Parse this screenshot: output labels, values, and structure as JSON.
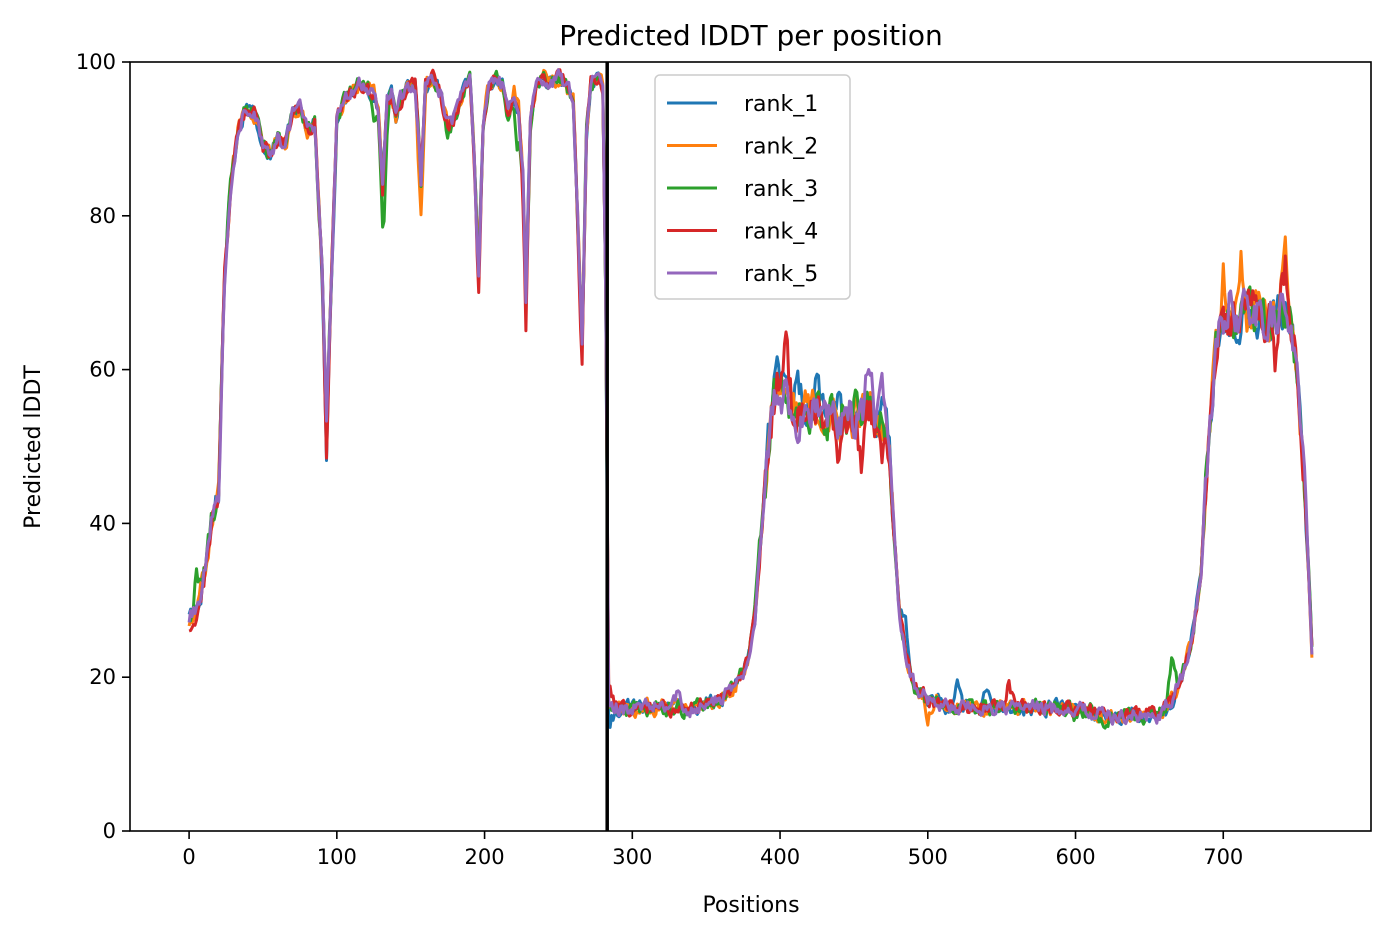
{
  "chart_data": {
    "type": "line",
    "title": "Predicted lDDT per position",
    "xlabel": "Positions",
    "ylabel": "Predicted lDDT",
    "xlim": [
      -40,
      800
    ],
    "ylim": [
      0,
      100
    ],
    "xticks": [
      0,
      100,
      200,
      300,
      400,
      500,
      600,
      700
    ],
    "yticks": [
      0,
      20,
      40,
      60,
      80,
      100
    ],
    "grid": false,
    "legend_position": "upper-center",
    "chain_break_x": 283,
    "x_start": 0,
    "x_end": 760,
    "base_profile": [
      [
        0,
        27
      ],
      [
        5,
        29
      ],
      [
        10,
        33
      ],
      [
        15,
        40
      ],
      [
        20,
        44
      ],
      [
        24,
        72
      ],
      [
        28,
        84
      ],
      [
        33,
        91
      ],
      [
        38,
        94
      ],
      [
        45,
        93
      ],
      [
        50,
        89
      ],
      [
        55,
        88
      ],
      [
        60,
        90
      ],
      [
        65,
        89
      ],
      [
        70,
        93
      ],
      [
        75,
        94
      ],
      [
        80,
        91
      ],
      [
        85,
        92
      ],
      [
        90,
        74
      ],
      [
        93,
        53
      ],
      [
        96,
        70
      ],
      [
        100,
        92
      ],
      [
        105,
        95
      ],
      [
        110,
        96
      ],
      [
        115,
        97
      ],
      [
        120,
        97
      ],
      [
        125,
        96
      ],
      [
        128,
        94
      ],
      [
        131,
        84
      ],
      [
        134,
        95
      ],
      [
        137,
        96
      ],
      [
        140,
        93
      ],
      [
        143,
        95
      ],
      [
        148,
        97
      ],
      [
        153,
        97
      ],
      [
        157,
        85
      ],
      [
        160,
        97
      ],
      [
        165,
        98
      ],
      [
        170,
        96
      ],
      [
        175,
        92
      ],
      [
        180,
        93
      ],
      [
        185,
        96
      ],
      [
        190,
        98
      ],
      [
        193,
        88
      ],
      [
        196,
        72
      ],
      [
        199,
        92
      ],
      [
        203,
        97
      ],
      [
        207,
        98
      ],
      [
        212,
        97
      ],
      [
        216,
        93
      ],
      [
        220,
        96
      ],
      [
        223,
        94
      ],
      [
        226,
        85
      ],
      [
        228,
        70
      ],
      [
        231,
        92
      ],
      [
        235,
        97
      ],
      [
        240,
        98
      ],
      [
        245,
        97
      ],
      [
        250,
        98
      ],
      [
        255,
        97
      ],
      [
        260,
        95
      ],
      [
        263,
        80
      ],
      [
        266,
        64
      ],
      [
        269,
        91
      ],
      [
        272,
        97
      ],
      [
        276,
        98
      ],
      [
        280,
        97
      ],
      [
        282,
        70
      ],
      [
        284,
        16
      ],
      [
        300,
        16
      ],
      [
        320,
        16
      ],
      [
        340,
        16
      ],
      [
        360,
        17
      ],
      [
        370,
        19
      ],
      [
        378,
        22
      ],
      [
        383,
        28
      ],
      [
        388,
        40
      ],
      [
        393,
        52
      ],
      [
        398,
        58
      ],
      [
        403,
        57
      ],
      [
        410,
        54
      ],
      [
        420,
        55
      ],
      [
        430,
        54
      ],
      [
        440,
        53
      ],
      [
        450,
        54
      ],
      [
        460,
        55
      ],
      [
        470,
        52
      ],
      [
        474,
        50
      ],
      [
        477,
        40
      ],
      [
        481,
        28
      ],
      [
        486,
        22
      ],
      [
        491,
        19
      ],
      [
        500,
        17
      ],
      [
        520,
        16
      ],
      [
        540,
        16
      ],
      [
        560,
        16
      ],
      [
        580,
        16
      ],
      [
        600,
        16
      ],
      [
        620,
        15
      ],
      [
        640,
        15
      ],
      [
        655,
        15
      ],
      [
        665,
        17
      ],
      [
        672,
        20
      ],
      [
        680,
        26
      ],
      [
        685,
        34
      ],
      [
        690,
        50
      ],
      [
        695,
        63
      ],
      [
        700,
        66
      ],
      [
        710,
        67
      ],
      [
        720,
        68
      ],
      [
        730,
        66
      ],
      [
        740,
        68
      ],
      [
        745,
        67
      ],
      [
        750,
        60
      ],
      [
        755,
        45
      ],
      [
        760,
        24
      ]
    ],
    "series": [
      {
        "name": "rank_1",
        "color": "#1f77b4",
        "seed": 11,
        "dips": [
          [
            93,
            -4
          ],
          [
            398,
            5
          ],
          [
            412,
            6
          ],
          [
            425,
            5
          ],
          [
            440,
            2
          ],
          [
            470,
            3
          ],
          [
            485,
            5
          ],
          [
            520,
            4
          ],
          [
            540,
            3
          ],
          [
            560,
            -1
          ],
          [
            285,
            -2
          ]
        ]
      },
      {
        "name": "rank_2",
        "color": "#ff7f0e",
        "seed": 23,
        "dips": [
          [
            157,
            -6
          ],
          [
            700,
            6
          ],
          [
            712,
            7
          ],
          [
            742,
            9
          ],
          [
            760,
            -2
          ],
          [
            500,
            -2
          ]
        ]
      },
      {
        "name": "rank_3",
        "color": "#2ca02c",
        "seed": 37,
        "dips": [
          [
            132,
            -8
          ],
          [
            96,
            0
          ],
          [
            5,
            4
          ],
          [
            125,
            -3
          ],
          [
            175,
            -3
          ],
          [
            222,
            -6
          ],
          [
            385,
            3
          ],
          [
            405,
            -3
          ],
          [
            600,
            -1
          ],
          [
            620,
            -2
          ],
          [
            665,
            5
          ],
          [
            690,
            2
          ]
        ]
      },
      {
        "name": "rank_4",
        "color": "#d62728",
        "seed": 49,
        "dips": [
          [
            196,
            -3
          ],
          [
            228,
            -5
          ],
          [
            266,
            -3
          ],
          [
            93,
            -4
          ],
          [
            284,
            3
          ],
          [
            404,
            7
          ],
          [
            440,
            -4
          ],
          [
            455,
            -6
          ],
          [
            470,
            -3
          ],
          [
            555,
            4
          ],
          [
            735,
            -8
          ],
          [
            742,
            6
          ]
        ]
      },
      {
        "name": "rank_5",
        "color": "#9467bd",
        "seed": 61,
        "dips": [
          [
            460,
            7
          ],
          [
            470,
            5
          ],
          [
            400,
            -3
          ],
          [
            410,
            -2
          ],
          [
            705,
            3
          ],
          [
            330,
            2
          ],
          [
            655,
            -1
          ]
        ]
      }
    ]
  }
}
